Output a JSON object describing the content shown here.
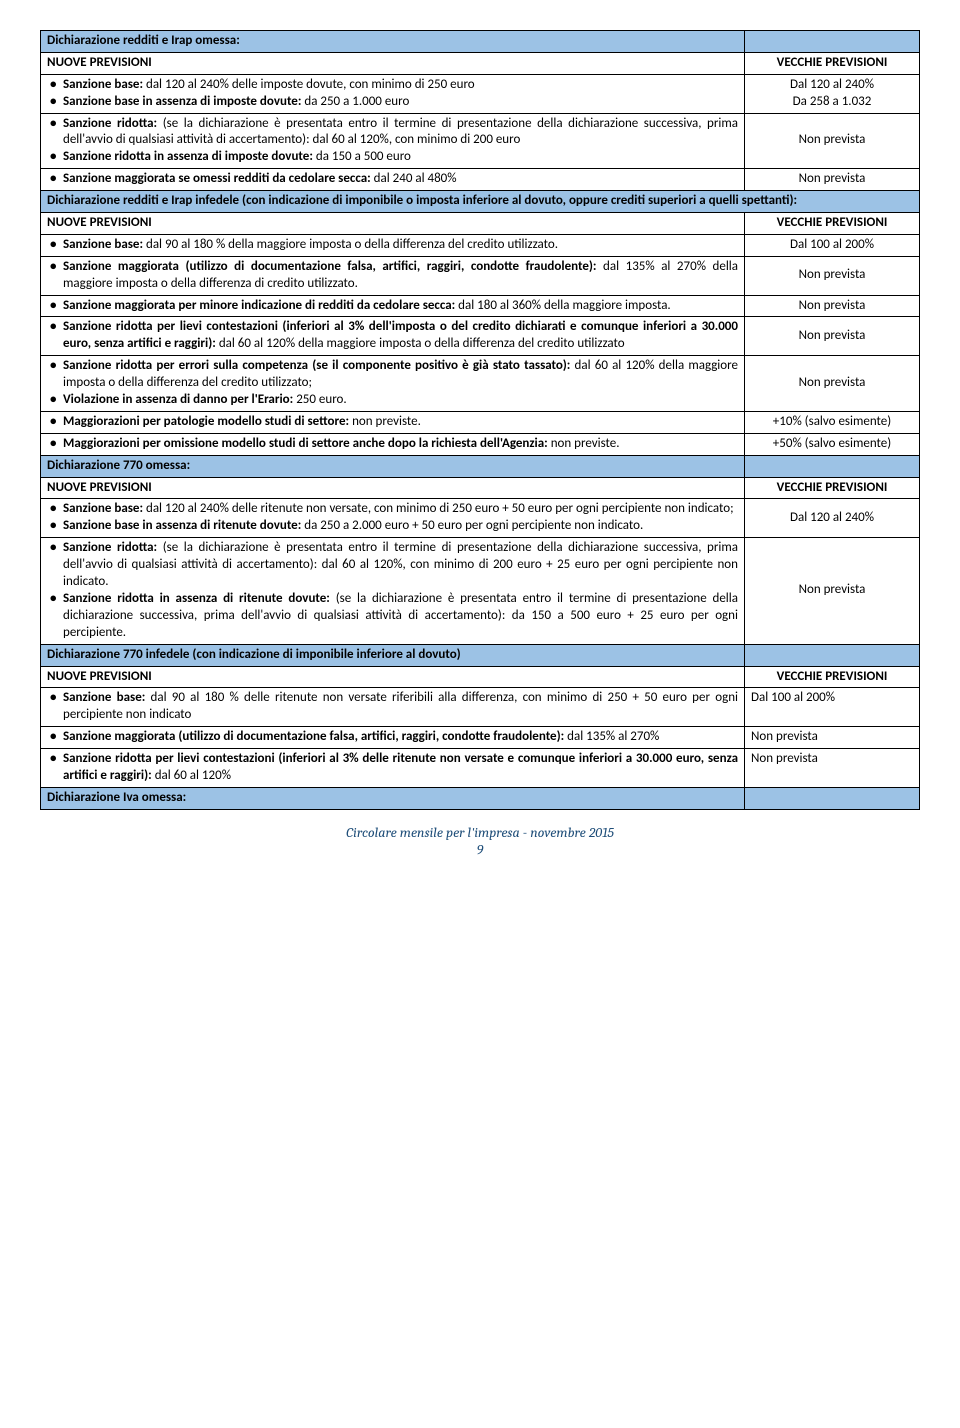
{
  "colors": {
    "header_bg": "#9cc2e5",
    "footer_color": "#1f4e79",
    "border": "#000000",
    "text": "#000000"
  },
  "h1": "Dichiarazione redditi e Irap omessa:",
  "np": "NUOVE PREVISIONI",
  "vp": "VECCHIE PREVISIONI",
  "nprev": "Non prevista",
  "r1a": "Sanzione base:",
  "r1b": " dal 120 al 240% delle imposte dovute, con minimo di 250 euro",
  "r1c": "Sanzione base in assenza di imposte dovute:",
  "r1d": " da 250 a 1.000 euro",
  "r1r": "Dal 120 al 240%\nDa 258 a 1.032",
  "r2a": "Sanzione ridotta:",
  "r2b": " (se la dichiarazione è presentata entro il termine di presentazione della dichiarazione successiva, prima dell'avvio di qualsiasi attività di accertamento): dal 60 al 120%, con minimo di 200 euro",
  "r2c": "Sanzione ridotta in assenza di imposte dovute:",
  "r2d": " da 150 a 500 euro",
  "r3a": "Sanzione maggiorata se omessi redditi da cedolare secca:",
  "r3b": " dal 240 al 480%",
  "h2": "Dichiarazione redditi e Irap infedele (con indicazione di imponibile o imposta inferiore al dovuto, oppure crediti superiori a quelli spettanti):",
  "r4a": "Sanzione base:",
  "r4b": " dal 90 al 180 % della maggiore imposta o della differenza del credito utilizzato.",
  "r4r": "Dal 100 al 200%",
  "r5a": "Sanzione maggiorata (utilizzo di documentazione falsa, artifici, raggiri, condotte fraudolente):",
  "r5b": " dal 135% al 270% della maggiore imposta o della differenza di credito utilizzato.",
  "r6a": "Sanzione maggiorata per minore indicazione di redditi da cedolare secca:",
  "r6b": " dal 180 al 360% della maggiore imposta.",
  "r7a": "Sanzione ridotta per lievi contestazioni (inferiori al 3% dell'imposta o del credito dichiarati e comunque inferiori a 30.000 euro, senza artifici e raggiri):",
  "r7b": " dal 60 al 120% della maggiore imposta o della differenza del credito utilizzato",
  "r8a": "Sanzione ridotta per errori sulla competenza (se il componente positivo è già stato tassato):",
  "r8b": " dal 60 al 120% della maggiore imposta o della differenza del credito utilizzato;",
  "r8c": "Violazione in assenza di danno per l'Erario:",
  "r8d": " 250 euro.",
  "r9a": "Maggiorazioni per patologie modello studi di settore:",
  "r9b": " non previste.",
  "r9r": "+10% (salvo esimente)",
  "r10a": "Maggiorazioni per omissione modello studi di settore anche dopo la richiesta dell'Agenzia:",
  "r10b": " non previste.",
  "r10r": "+50% (salvo esimente)",
  "h3": "Dichiarazione 770 omessa:",
  "r11a": "Sanzione base:",
  "r11b": " dal 120 al 240% delle ritenute non versate, con minimo di 250 euro + 50 euro per ogni percipiente non indicato;",
  "r11c": "Sanzione base in assenza di ritenute dovute:",
  "r11d": " da 250 a 2.000 euro + 50 euro per ogni percipiente non indicato.",
  "r11r": "Dal 120 al 240%",
  "r12a": "Sanzione ridotta:",
  "r12b": " (se la dichiarazione è presentata entro il termine di presentazione della dichiarazione successiva, prima dell'avvio di qualsiasi attività di accertamento): dal 60 al 120%, con minimo di 200 euro + 25 euro per ogni percipiente non indicato.",
  "r12c": "Sanzione ridotta in assenza di ritenute dovute:",
  "r12d": " (se la dichiarazione è presentata entro il termine di presentazione della dichiarazione successiva, prima dell'avvio di qualsiasi attività di accertamento): da 150 a 500 euro + 25 euro per ogni percipiente.",
  "h4": "Dichiarazione 770 infedele (con indicazione di imponibile inferiore al dovuto)",
  "r13a": "Sanzione base:",
  "r13b": " dal 90 al 180 % delle ritenute non versate riferibili alla differenza, con minimo di 250 + 50 euro per ogni percipiente non indicato",
  "r13r": "Dal 100 al 200%",
  "r14a": "Sanzione maggiorata (utilizzo di documentazione falsa, artifici, raggiri, condotte fraudolente):",
  "r14b": " dal 135% al 270%",
  "r15a": "Sanzione ridotta per lievi contestazioni (inferiori al 3% delle ritenute non versate e comunque inferiori a 30.000 euro, senza artifici e raggiri):",
  "r15b": " dal 60 al 120%",
  "h5": "Dichiarazione Iva omessa:",
  "footer": "Circolare mensile per l'impresa - novembre 2015",
  "pagenum": "9"
}
